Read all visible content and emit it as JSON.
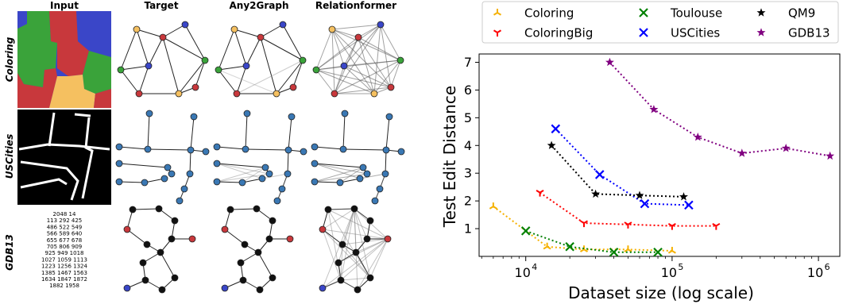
{
  "panel": {
    "col_headers": [
      "Input",
      "Target",
      "Any2Graph",
      "Relationformer"
    ],
    "row_labels": [
      "Coloring",
      "USCities",
      "GDB13"
    ],
    "gdb13_input_lines": [
      "2048 14",
      "113 292 425",
      "486 522 549",
      "566 589 640",
      "655 677 678",
      "705 806 909",
      "925 949 1018",
      "1027 1059 1113",
      "1223 1256 1324",
      "1385 1467 1563",
      "1634 1847 1872",
      "1882 1958"
    ]
  },
  "chart_data": {
    "type": "scatter",
    "title": "",
    "xlabel": "Dataset size (log scale)",
    "ylabel": "Test Edit Distance",
    "xscale": "log",
    "xlim": [
      4800,
      1400000
    ],
    "ylim": [
      0,
      7.3
    ],
    "yticks": [
      1,
      2,
      3,
      4,
      5,
      6,
      7
    ],
    "xticks": [
      {
        "value": 10000,
        "base": "10",
        "exp": "4"
      },
      {
        "value": 100000,
        "base": "10",
        "exp": "5"
      },
      {
        "value": 1000000,
        "base": "10",
        "exp": "6"
      }
    ],
    "legend_position": "top",
    "series": [
      {
        "name": "Coloring",
        "color": "#f5b100",
        "marker": "tri_up",
        "x": [
          6000,
          14000,
          25000,
          50000,
          100000
        ],
        "y": [
          1.8,
          0.35,
          0.25,
          0.25,
          0.2
        ]
      },
      {
        "name": "ColoringBig",
        "color": "#ff0000",
        "marker": "tri_down",
        "x": [
          12500,
          25000,
          50000,
          100000,
          200000
        ],
        "y": [
          2.3,
          1.2,
          1.15,
          1.1,
          1.1
        ]
      },
      {
        "name": "Toulouse",
        "color": "#008000",
        "marker": "x",
        "x": [
          10000,
          20000,
          40000,
          80000
        ],
        "y": [
          0.92,
          0.35,
          0.15,
          0.15
        ]
      },
      {
        "name": "USCities",
        "color": "#0000ff",
        "marker": "x",
        "x": [
          16000,
          32000,
          65000,
          130000
        ],
        "y": [
          4.6,
          2.95,
          1.9,
          1.85
        ]
      },
      {
        "name": "QM9",
        "color": "#000000",
        "marker": "star",
        "x": [
          15000,
          30000,
          60000,
          120000
        ],
        "y": [
          4.0,
          2.25,
          2.2,
          2.15
        ]
      },
      {
        "name": "GDB13",
        "color": "#800080",
        "marker": "star",
        "x": [
          37500,
          75000,
          150000,
          300000,
          600000,
          1200000
        ],
        "y": [
          7.0,
          5.3,
          4.3,
          3.72,
          3.9,
          3.62
        ]
      }
    ]
  }
}
